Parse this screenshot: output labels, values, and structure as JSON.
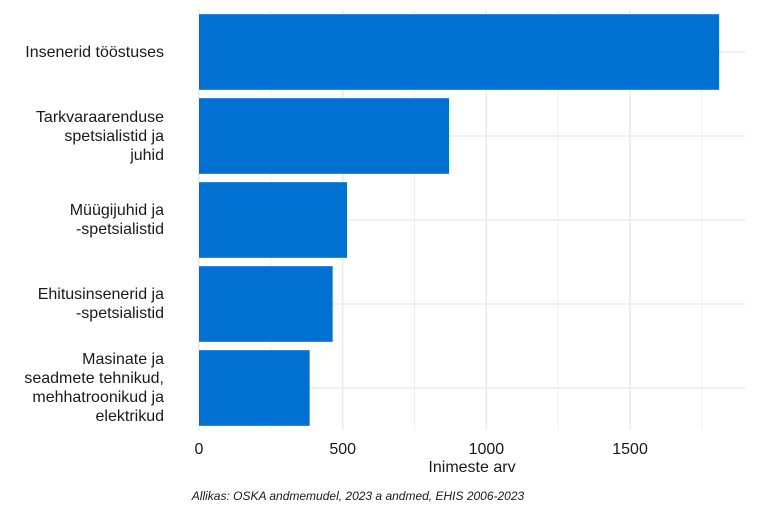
{
  "chart_data": {
    "type": "bar",
    "orientation": "horizontal",
    "categories": [
      [
        "Insenerid tööstuses"
      ],
      [
        "Tarkvaraarenduse",
        "spetsialistid ja",
        "juhid"
      ],
      [
        "Müügijuhid ja",
        "-spetsialistid"
      ],
      [
        "Ehitusinsenerid ja",
        "-spetsialistid"
      ],
      [
        "Masinate ja",
        "seadmete tehnikud,",
        "mehhatroonikud ja",
        "elektrikud"
      ]
    ],
    "values": [
      1810,
      870,
      515,
      465,
      385
    ],
    "xlabel": "Inimeste arv",
    "ylabel": "",
    "xlim": [
      0,
      1900
    ],
    "ticks": [
      "0",
      "500",
      "1000",
      "1500"
    ],
    "tick_values": [
      0,
      500,
      1000,
      1500
    ],
    "grid": true,
    "bar_color": "#0070d2",
    "grid_color": "#ebebeb"
  },
  "source": "Allikas: OSKA andmemudel, 2023 a andmed, EHIS 2006-2023"
}
